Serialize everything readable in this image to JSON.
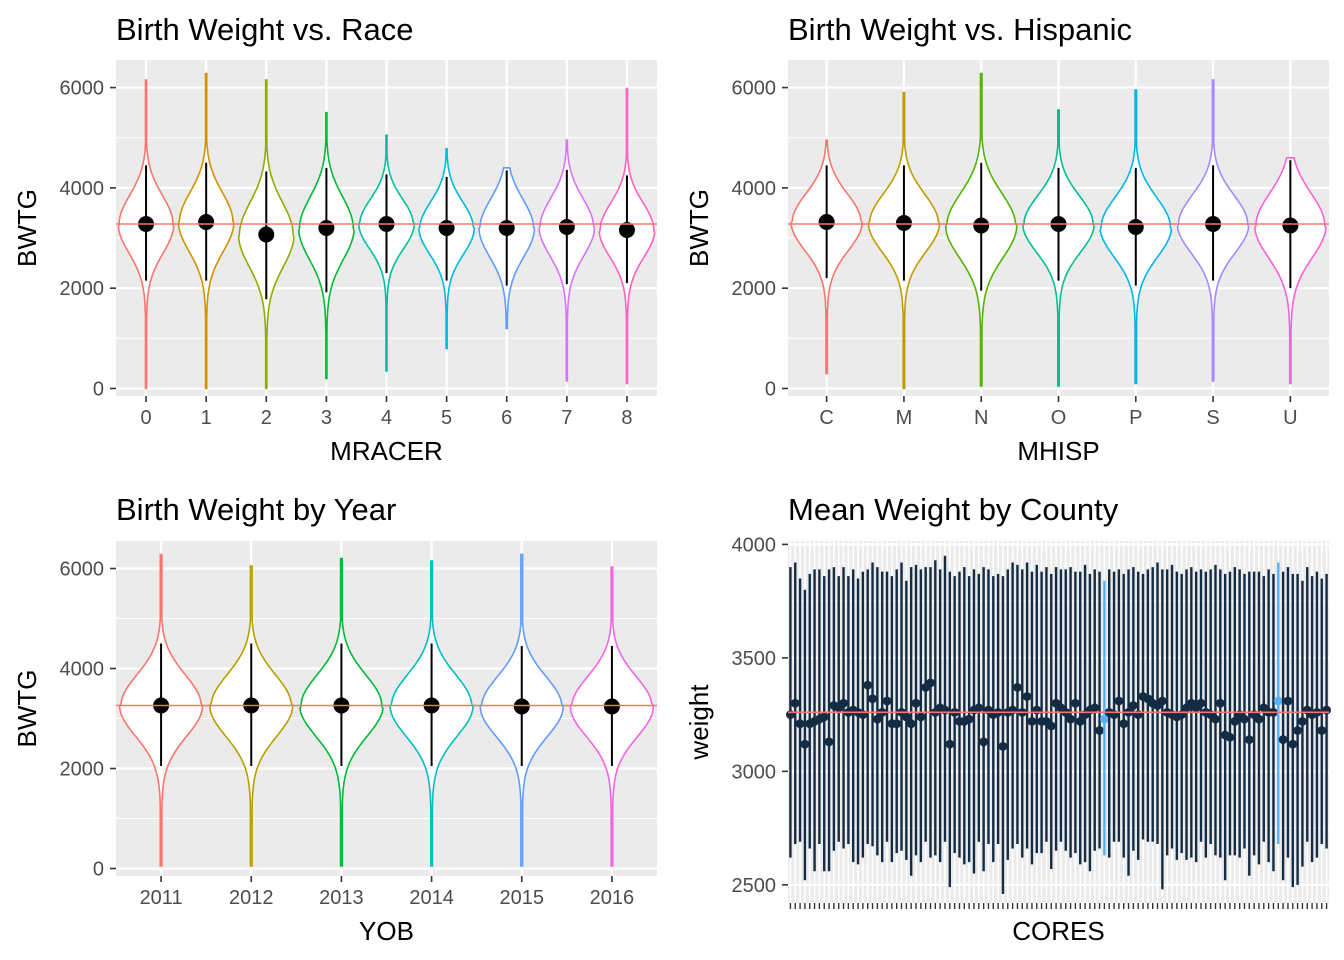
{
  "figure": {
    "reference_line_color": "#F8766D",
    "panel_background": "#EBEBEB"
  },
  "chart_data": [
    {
      "type": "violin",
      "title": "Birth Weight vs. Race",
      "xlabel": "MRACER",
      "ylabel": "BWTG",
      "ylim": [
        -150,
        6550
      ],
      "yticks": [
        0,
        2000,
        4000,
        6000
      ],
      "ytick_labels": [
        "0",
        "2000",
        "4000",
        "6000"
      ],
      "reference_line": 3280,
      "grid": true,
      "legend": "none",
      "categories": [
        "0",
        "1",
        "2",
        "3",
        "4",
        "5",
        "6",
        "7",
        "8"
      ],
      "colors": [
        "#F8766D",
        "#D39200",
        "#93AA00",
        "#00BA38",
        "#00C19F",
        "#00B9E3",
        "#619CFF",
        "#DB72FB",
        "#FF61C3"
      ],
      "means": [
        3280,
        3320,
        3070,
        3200,
        3280,
        3200,
        3200,
        3220,
        3160
      ],
      "whisker_low": [
        2150,
        2150,
        1780,
        1920,
        2300,
        2150,
        2050,
        2080,
        2100
      ],
      "whisker_high": [
        4450,
        4500,
        4330,
        4400,
        4270,
        4220,
        4350,
        4360,
        4250
      ],
      "min": [
        0,
        0,
        0,
        200,
        350,
        800,
        1200,
        150,
        100
      ],
      "max": [
        6150,
        6280,
        6150,
        5500,
        5050,
        4780,
        4400,
        4950,
        5980
      ]
    },
    {
      "type": "violin",
      "title": "Birth Weight vs. Hispanic",
      "xlabel": "MHISP",
      "ylabel": "BWTG",
      "ylim": [
        -150,
        6550
      ],
      "yticks": [
        0,
        2000,
        4000,
        6000
      ],
      "ytick_labels": [
        "0",
        "2000",
        "4000",
        "6000"
      ],
      "reference_line": 3280,
      "grid": true,
      "legend": "none",
      "categories": [
        "C",
        "M",
        "N",
        "O",
        "P",
        "S",
        "U"
      ],
      "colors": [
        "#F8766D",
        "#C49A00",
        "#53B400",
        "#00C094",
        "#00B6EB",
        "#A58AFF",
        "#FB61D7"
      ],
      "means": [
        3320,
        3300,
        3250,
        3280,
        3220,
        3280,
        3250
      ],
      "whisker_low": [
        2200,
        2150,
        1950,
        2150,
        2050,
        2150,
        2000
      ],
      "whisker_high": [
        4450,
        4450,
        4500,
        4400,
        4400,
        4450,
        4550
      ],
      "min": [
        300,
        0,
        50,
        50,
        100,
        150,
        100
      ],
      "max": [
        4950,
        5900,
        6280,
        5550,
        5950,
        6150,
        4600
      ]
    },
    {
      "type": "violin",
      "title": "Birth Weight by Year",
      "xlabel": "YOB",
      "ylabel": "BWTG",
      "ylim": [
        -150,
        6550
      ],
      "yticks": [
        0,
        2000,
        4000,
        6000
      ],
      "ytick_labels": [
        "0",
        "2000",
        "4000",
        "6000"
      ],
      "reference_line": 3260,
      "grid": true,
      "legend": "none",
      "categories": [
        "2011",
        "2012",
        "2013",
        "2014",
        "2015",
        "2016"
      ],
      "colors": [
        "#F8766D",
        "#B79F00",
        "#00BA38",
        "#00BFC4",
        "#619CFF",
        "#F564E3"
      ],
      "means": [
        3260,
        3260,
        3260,
        3260,
        3240,
        3240
      ],
      "whisker_low": [
        2050,
        2050,
        2050,
        2050,
        2050,
        2050
      ],
      "whisker_high": [
        4500,
        4500,
        4500,
        4500,
        4450,
        4450
      ],
      "min": [
        50,
        50,
        50,
        50,
        50,
        50
      ],
      "max": [
        6280,
        6050,
        6200,
        6150,
        6280,
        6030
      ]
    },
    {
      "type": "pointrange",
      "title": "Mean Weight by County",
      "xlabel": "CORES",
      "ylabel": "weight",
      "ylim": [
        2420,
        4015
      ],
      "yticks": [
        2500,
        3000,
        3500,
        4000
      ],
      "ytick_labels": [
        "2500",
        "3000",
        "3500",
        "4000"
      ],
      "reference_line": 3260,
      "grid": true,
      "legend": "none",
      "series_colors": {
        "default": "#132B43",
        "highlight": "#56B1F7"
      },
      "highlight_indices": [
        65,
        101
      ],
      "means": [
        3250,
        3300,
        3210,
        3120,
        3210,
        3220,
        3230,
        3240,
        3130,
        3290,
        3280,
        3300,
        3260,
        3270,
        3260,
        3250,
        3380,
        3320,
        3230,
        3260,
        3310,
        3210,
        3210,
        3260,
        3240,
        3210,
        3300,
        3240,
        3370,
        3390,
        3260,
        3280,
        3270,
        3120,
        3260,
        3220,
        3220,
        3230,
        3270,
        3280,
        3130,
        3270,
        3250,
        3260,
        3110,
        3260,
        3270,
        3370,
        3260,
        3330,
        3220,
        3270,
        3220,
        3220,
        3200,
        3300,
        3280,
        3260,
        3230,
        3300,
        3220,
        3250,
        3270,
        3280,
        3180,
        3230,
        3260,
        3250,
        3310,
        3210,
        3260,
        3290,
        3250,
        3330,
        3320,
        3300,
        3290,
        3310,
        3260,
        3250,
        3240,
        3250,
        3280,
        3300,
        3280,
        3300,
        3260,
        3250,
        3230,
        3300,
        3160,
        3150,
        3220,
        3250,
        3230,
        3140,
        3250,
        3230,
        3280,
        3260,
        3260,
        3310,
        3140,
        3310,
        3120,
        3180,
        3220,
        3270,
        3250,
        3260,
        3180,
        3270
      ],
      "lows": [
        2620,
        2680,
        2690,
        2520,
        2660,
        2560,
        2680,
        2560,
        2560,
        2650,
        2690,
        2660,
        2680,
        2600,
        2590,
        2620,
        2680,
        2670,
        2630,
        2600,
        2690,
        2600,
        2640,
        2650,
        2610,
        2540,
        2630,
        2600,
        2690,
        2620,
        2630,
        2600,
        2690,
        2490,
        2640,
        2620,
        2590,
        2600,
        2550,
        2690,
        2560,
        2680,
        2600,
        2680,
        2460,
        2610,
        2660,
        2680,
        2620,
        2660,
        2590,
        2640,
        2640,
        2690,
        2570,
        2650,
        2690,
        2650,
        2620,
        2640,
        2590,
        2600,
        2560,
        2650,
        2660,
        2630,
        2620,
        2690,
        2690,
        2620,
        2540,
        2650,
        2610,
        2700,
        2690,
        2690,
        2680,
        2480,
        2630,
        2660,
        2610,
        2640,
        2610,
        2620,
        2600,
        2690,
        2620,
        2680,
        2630,
        2620,
        2520,
        2630,
        2630,
        2620,
        2660,
        2540,
        2630,
        2590,
        2690,
        2600,
        2560,
        2680,
        2520,
        2620,
        2490,
        2500,
        2580,
        2690,
        2600,
        2620,
        2680,
        2660
      ],
      "highs": [
        3900,
        3920,
        3850,
        3800,
        3870,
        3890,
        3890,
        3860,
        3890,
        3900,
        3860,
        3900,
        3860,
        3890,
        3850,
        3880,
        3890,
        3920,
        3900,
        3880,
        3880,
        3860,
        3890,
        3920,
        3840,
        3900,
        3910,
        3890,
        3900,
        3900,
        3930,
        3890,
        3950,
        3880,
        3860,
        3880,
        3900,
        3860,
        3890,
        3870,
        3900,
        3890,
        3860,
        3870,
        3860,
        3890,
        3920,
        3910,
        3890,
        3920,
        3880,
        3910,
        3880,
        3900,
        3870,
        3900,
        3890,
        3890,
        3900,
        3880,
        3880,
        3910,
        3870,
        3890,
        3880,
        3840,
        3890,
        3880,
        3890,
        3870,
        3890,
        3900,
        3880,
        3870,
        3890,
        3900,
        3920,
        3890,
        3890,
        3910,
        3880,
        3870,
        3890,
        3900,
        3880,
        3890,
        3880,
        3890,
        3910,
        3890,
        3870,
        3880,
        3900,
        3890,
        3870,
        3880,
        3880,
        3880,
        3860,
        3890,
        3870,
        3920,
        3880,
        3900,
        3870,
        3870,
        3840,
        3900,
        3860,
        3880,
        3850,
        3870
      ]
    }
  ]
}
